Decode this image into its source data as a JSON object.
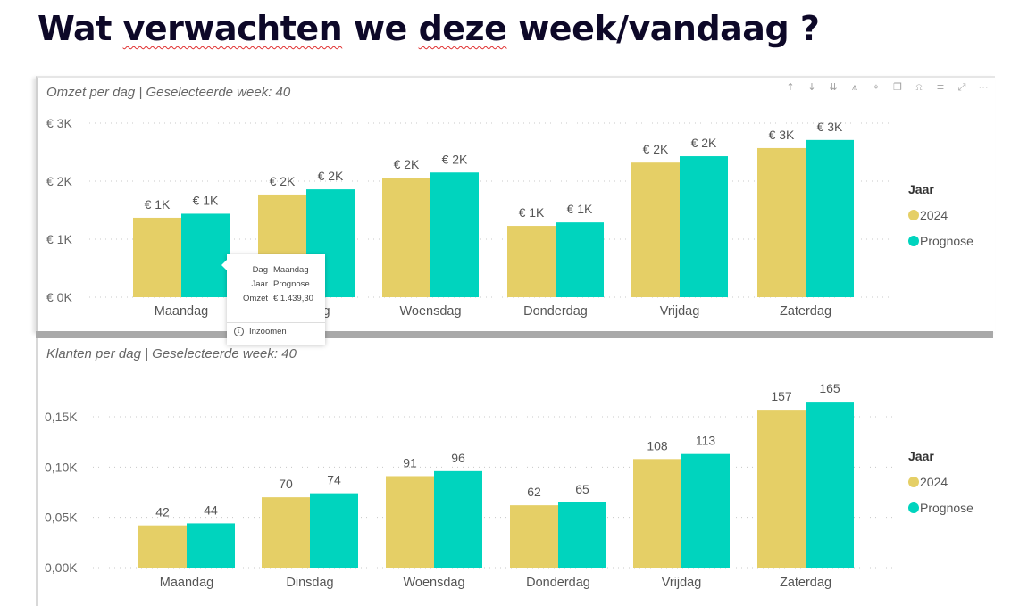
{
  "page": {
    "title_words": [
      "Wat",
      "verwachten",
      "we",
      "deze",
      "week/vandaag",
      "?"
    ]
  },
  "toolbar_icons": [
    "arrow-up-icon",
    "arrow-down-icon",
    "double-arrow-down-icon",
    "expand-hierarchy-icon",
    "pin-icon",
    "copy-icon",
    "bell-icon",
    "filter-icon",
    "focus-mode-icon",
    "more-options-icon"
  ],
  "colors": {
    "series_2024": "#E5CF66",
    "series_prognose": "#00D4BE",
    "grid": "#c8c8c8",
    "axis_text": "#666666"
  },
  "tooltip": {
    "rows": [
      {
        "key": "Dag",
        "value": "Maandag"
      },
      {
        "key": "Jaar",
        "value": "Prognose"
      },
      {
        "key": "Omzet",
        "value": "€ 1.439,30"
      }
    ],
    "action_label": "Inzoomen"
  },
  "chart_data": [
    {
      "type": "bar",
      "title": "Omzet per dag | Geselecteerde week: 40",
      "xlabel": "",
      "ylabel": "",
      "categories": [
        "Maandag",
        "Dinsdag",
        "Woensdag",
        "Donderdag",
        "Vrijdag",
        "Zaterdag"
      ],
      "series": [
        {
          "name": "2024",
          "values": [
            1370,
            1770,
            2060,
            1230,
            2320,
            2570
          ],
          "labels": [
            "€ 1K",
            "€ 2K",
            "€ 2K",
            "€ 1K",
            "€ 2K",
            "€ 3K"
          ]
        },
        {
          "name": "Prognose",
          "values": [
            1439.3,
            1860,
            2150,
            1290,
            2430,
            2710
          ],
          "labels": [
            "€ 1K",
            "€ 2K",
            "€ 2K",
            "€ 1K",
            "€ 2K",
            "€ 3K"
          ]
        }
      ],
      "ylim": [
        0,
        3000
      ],
      "yticks": [
        0,
        1000,
        2000,
        3000
      ],
      "ytick_labels": [
        "€ 0K",
        "€ 1K",
        "€ 2K",
        "€ 3K"
      ],
      "grid": true,
      "legend": {
        "title": "Jaar",
        "entries": [
          "2024",
          "Prognose"
        ],
        "placement": "right"
      }
    },
    {
      "type": "bar",
      "title": "Klanten per dag | Geselecteerde week: 40",
      "xlabel": "",
      "ylabel": "",
      "categories": [
        "Maandag",
        "Dinsdag",
        "Woensdag",
        "Donderdag",
        "Vrijdag",
        "Zaterdag"
      ],
      "series": [
        {
          "name": "2024",
          "values": [
            42,
            70,
            91,
            62,
            108,
            157
          ],
          "labels": [
            "42",
            "70",
            "91",
            "62",
            "108",
            "157"
          ]
        },
        {
          "name": "Prognose",
          "values": [
            44,
            74,
            96,
            65,
            113,
            165
          ],
          "labels": [
            "44",
            "74",
            "96",
            "65",
            "113",
            "165"
          ]
        }
      ],
      "ylim": [
        0,
        150
      ],
      "yticks": [
        0,
        50,
        100,
        150
      ],
      "ytick_labels": [
        "0,00K",
        "0,05K",
        "0,10K",
        "0,15K"
      ],
      "grid": true,
      "legend": {
        "title": "Jaar",
        "entries": [
          "2024",
          "Prognose"
        ],
        "placement": "right"
      }
    }
  ]
}
